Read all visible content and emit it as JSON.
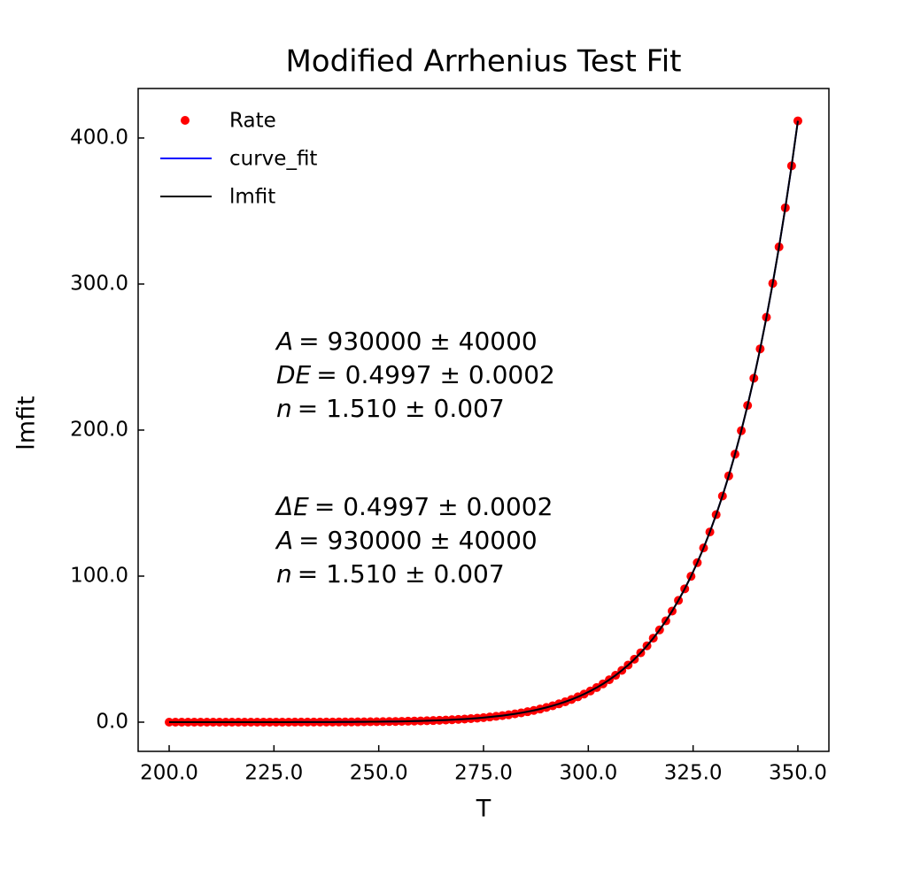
{
  "chart_data": {
    "type": "line",
    "title": "Modified Arrhenius Test Fit",
    "xlabel": "T",
    "ylabel": "lmfit",
    "legend": "upper left",
    "tick_direction": "in",
    "xlim": [
      192.6,
      357.4
    ],
    "ylim": [
      -20,
      433.9
    ],
    "xticks": [
      {
        "value": 200,
        "label": "200.0"
      },
      {
        "value": 225,
        "label": "225.0"
      },
      {
        "value": 250,
        "label": "250.0"
      },
      {
        "value": 275,
        "label": "275.0"
      },
      {
        "value": 300,
        "label": "300.0"
      },
      {
        "value": 325,
        "label": "325.0"
      },
      {
        "value": 350,
        "label": "350.0"
      }
    ],
    "yticks": [
      {
        "value": 0,
        "label": "0.0"
      },
      {
        "value": 100,
        "label": "100.0"
      },
      {
        "value": 200,
        "label": "200.0"
      },
      {
        "value": 300,
        "label": "300.0"
      },
      {
        "value": 400,
        "label": "400.0"
      }
    ],
    "x": [
      200,
      201.5,
      203,
      204.5,
      206,
      207.5,
      209,
      210.5,
      212,
      213.5,
      215,
      216.5,
      218,
      219.5,
      221,
      222.5,
      224,
      225.5,
      227,
      228.5,
      230,
      231.5,
      233,
      234.5,
      236,
      237.5,
      239,
      240.5,
      242,
      243.5,
      245,
      246.5,
      248,
      249.5,
      251,
      252.5,
      254,
      255.5,
      257,
      258.5,
      260,
      261.5,
      263,
      264.5,
      266,
      267.5,
      269,
      270.5,
      272,
      273.5,
      275,
      276.5,
      278,
      279.5,
      281,
      282.5,
      284,
      285.5,
      287,
      288.5,
      290,
      291.5,
      293,
      294.5,
      296,
      297.5,
      299,
      300.5,
      302,
      303.5,
      305,
      306.5,
      308,
      309.5,
      311,
      312.5,
      314,
      315.5,
      317,
      318.5,
      320,
      321.5,
      323,
      324.5,
      326,
      327.5,
      329,
      330.5,
      332,
      333.5,
      335,
      336.5,
      338,
      339.5,
      341,
      342.5,
      344,
      345.5,
      347,
      348.5,
      350
    ],
    "series": [
      {
        "name": "Rate",
        "color": "#ff0000",
        "style": "markers",
        "values": [
          0.00071,
          0.00089,
          0.00111,
          0.00139,
          0.00173,
          0.00214,
          0.00264,
          0.00326,
          0.004,
          0.0049,
          0.00598,
          0.00729,
          0.00885,
          0.01073,
          0.01297,
          0.01564,
          0.01882,
          0.02259,
          0.02704,
          0.03229,
          0.03847,
          0.04574,
          0.05426,
          0.06425,
          0.07592,
          0.08953,
          0.10537,
          0.12377,
          0.14508,
          0.16972,
          0.19814,
          0.2309,
          0.26864,
          0.31205,
          0.36182,
          0.41881,
          0.48404,
          0.55844,
          0.64327,
          0.73963,
          0.84908,
          0.97326,
          1.114,
          1.2733,
          1.4534,
          1.6566,
          1.8856,
          2.1428,
          2.432,
          2.7566,
          3.1196,
          3.5261,
          3.9809,
          4.4884,
          5.0551,
          5.6866,
          6.3892,
          7.17,
          8.0356,
          8.9962,
          10.059,
          11.236,
          12.536,
          13.974,
          15.56,
          17.308,
          19.234,
          21.349,
          23.675,
          26.225,
          29.023,
          32.089,
          35.442,
          39.119,
          43.133,
          47.518,
          52.301,
          57.518,
          63.187,
          69.367,
          76.081,
          83.38,
          91.295,
          99.893,
          109.21,
          119.32,
          130.24,
          142.07,
          154.84,
          168.65,
          183.52,
          199.58,
          216.87,
          235.52,
          255.62,
          277.24,
          300.48,
          325.41,
          352.2,
          380.96,
          411.74
        ]
      },
      {
        "name": "curve_fit",
        "color": "#0000ff",
        "style": "line",
        "values": [
          0.00071,
          0.00089,
          0.00111,
          0.00139,
          0.00173,
          0.00214,
          0.00264,
          0.00326,
          0.004,
          0.0049,
          0.00598,
          0.00729,
          0.00885,
          0.01073,
          0.01297,
          0.01564,
          0.01882,
          0.02259,
          0.02704,
          0.03229,
          0.03847,
          0.04574,
          0.05426,
          0.06425,
          0.07592,
          0.08953,
          0.10537,
          0.12377,
          0.14508,
          0.16972,
          0.19814,
          0.2309,
          0.26864,
          0.31205,
          0.36182,
          0.41881,
          0.48404,
          0.55844,
          0.64327,
          0.73963,
          0.84908,
          0.97326,
          1.114,
          1.2733,
          1.4534,
          1.6566,
          1.8856,
          2.1428,
          2.432,
          2.7566,
          3.1196,
          3.5261,
          3.9809,
          4.4884,
          5.0551,
          5.6866,
          6.3892,
          7.17,
          8.0356,
          8.9962,
          10.059,
          11.236,
          12.536,
          13.974,
          15.56,
          17.308,
          19.234,
          21.349,
          23.675,
          26.225,
          29.023,
          32.089,
          35.442,
          39.119,
          43.133,
          47.518,
          52.301,
          57.518,
          63.187,
          69.367,
          76.081,
          83.38,
          91.295,
          99.893,
          109.21,
          119.32,
          130.24,
          142.07,
          154.84,
          168.65,
          183.52,
          199.58,
          216.87,
          235.52,
          255.62,
          277.24,
          300.48,
          325.41,
          352.2,
          380.96,
          411.74
        ]
      },
      {
        "name": "lmfit",
        "color": "#000000",
        "style": "line",
        "values": [
          0.00071,
          0.00089,
          0.00111,
          0.00139,
          0.00173,
          0.00214,
          0.00264,
          0.00326,
          0.004,
          0.0049,
          0.00598,
          0.00729,
          0.00885,
          0.01073,
          0.01297,
          0.01564,
          0.01882,
          0.02259,
          0.02704,
          0.03229,
          0.03847,
          0.04574,
          0.05426,
          0.06425,
          0.07592,
          0.08953,
          0.10537,
          0.12377,
          0.14508,
          0.16972,
          0.19814,
          0.2309,
          0.26864,
          0.31205,
          0.36182,
          0.41881,
          0.48404,
          0.55844,
          0.64327,
          0.73963,
          0.84908,
          0.97326,
          1.114,
          1.2733,
          1.4534,
          1.6566,
          1.8856,
          2.1428,
          2.432,
          2.7566,
          3.1196,
          3.5261,
          3.9809,
          4.4884,
          5.0551,
          5.6866,
          6.3892,
          7.17,
          8.0356,
          8.9962,
          10.059,
          11.236,
          12.536,
          13.974,
          15.56,
          17.308,
          19.234,
          21.349,
          23.675,
          26.225,
          29.023,
          32.089,
          35.442,
          39.119,
          43.133,
          47.518,
          52.301,
          57.518,
          63.187,
          69.367,
          76.081,
          83.38,
          91.295,
          99.893,
          109.21,
          119.32,
          130.24,
          142.07,
          154.84,
          168.65,
          183.52,
          199.58,
          216.87,
          235.52,
          255.62,
          277.24,
          300.48,
          325.41,
          352.2,
          380.96,
          411.74
        ]
      }
    ],
    "annotations": [
      {
        "lines": [
          {
            "var": "A",
            "rest": "= 930000 ± 40000"
          },
          {
            "var": "DE",
            "rest": "= 0.4997 ± 0.0002"
          },
          {
            "var": "n",
            "rest": "= 1.510 ± 0.007"
          }
        ]
      },
      {
        "lines": [
          {
            "var": "ΔE",
            "rest": "= 0.4997 ± 0.0002"
          },
          {
            "var": "A",
            "rest": "= 930000 ± 40000"
          },
          {
            "var": "n",
            "rest": "= 1.510 ± 0.007"
          }
        ]
      }
    ]
  }
}
